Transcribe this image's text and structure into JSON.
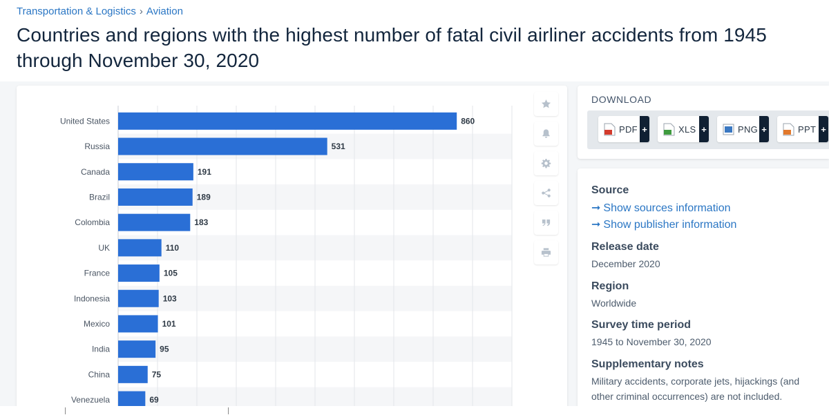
{
  "breadcrumb": {
    "category": "Transportation & Logistics",
    "separator": "›",
    "subcategory": "Aviation"
  },
  "title": "Countries and regions with the highest number of fatal civil airliner accidents from 1945 through November 30, 2020",
  "chart_data": {
    "type": "bar",
    "orientation": "horizontal",
    "categories": [
      "United States",
      "Russia",
      "Canada",
      "Brazil",
      "Colombia",
      "UK",
      "France",
      "Indonesia",
      "Mexico",
      "India",
      "China",
      "Venezuela"
    ],
    "values": [
      860,
      531,
      191,
      189,
      183,
      110,
      105,
      103,
      101,
      95,
      75,
      69
    ],
    "xlim": [
      0,
      1000
    ],
    "grid": true,
    "bar_color": "#2a6fd6",
    "title": "",
    "xlabel": "",
    "ylabel": ""
  },
  "toolbar": {
    "icons": [
      "star-icon",
      "bell-icon",
      "gear-icon",
      "share-icon",
      "quote-icon",
      "print-icon"
    ]
  },
  "download": {
    "title": "DOWNLOAD",
    "formats": [
      {
        "label": "PDF",
        "plus": "+",
        "color": "#d33b2c"
      },
      {
        "label": "XLS",
        "plus": "+",
        "color": "#3f9b3f"
      },
      {
        "label": "PNG",
        "plus": "+",
        "color": "#3a78c2"
      },
      {
        "label": "PPT",
        "plus": "+",
        "color": "#e2792c"
      }
    ]
  },
  "info": {
    "source_heading": "Source",
    "arrow": "➞",
    "show_sources": "Show sources information",
    "show_publisher": "Show publisher information",
    "release_heading": "Release date",
    "release_value": "December 2020",
    "region_heading": "Region",
    "region_value": "Worldwide",
    "survey_heading": "Survey time period",
    "survey_value": "1945 to November 30, 2020",
    "notes_heading": "Supplementary notes",
    "notes_value": "Military accidents, corporate jets, hijackings (and other criminal occurrences) are not included."
  },
  "colors": {
    "accent": "#2a76c4",
    "bar": "#2a6fd6",
    "title": "#13263d"
  }
}
